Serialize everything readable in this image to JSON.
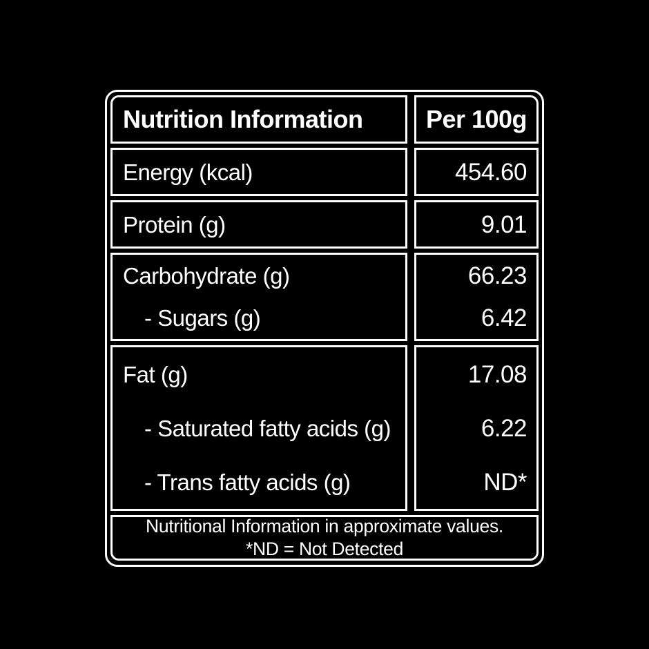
{
  "colors": {
    "background": "#000000",
    "text": "#ffffff",
    "border": "#ffffff"
  },
  "label": {
    "header": {
      "title": "Nutrition Information",
      "per": "Per 100g"
    },
    "rows": [
      {
        "label": "Energy (kcal)",
        "value": "454.60"
      },
      {
        "label": "Protein (g)",
        "value": "9.01"
      },
      {
        "label": "Carbohydrate (g)",
        "value": "66.23",
        "sub": [
          {
            "label": "- Sugars (g)",
            "value": "6.42"
          }
        ]
      },
      {
        "label": "Fat (g)",
        "value": "17.08",
        "sub": [
          {
            "label": "- Saturated fatty acids (g)",
            "value": "6.22"
          },
          {
            "label": "- Trans fatty acids (g)",
            "value": "ND*"
          }
        ]
      }
    ],
    "footer": {
      "line1": "Nutritional Information in approximate values.",
      "line2": "*ND = Not Detected"
    }
  }
}
